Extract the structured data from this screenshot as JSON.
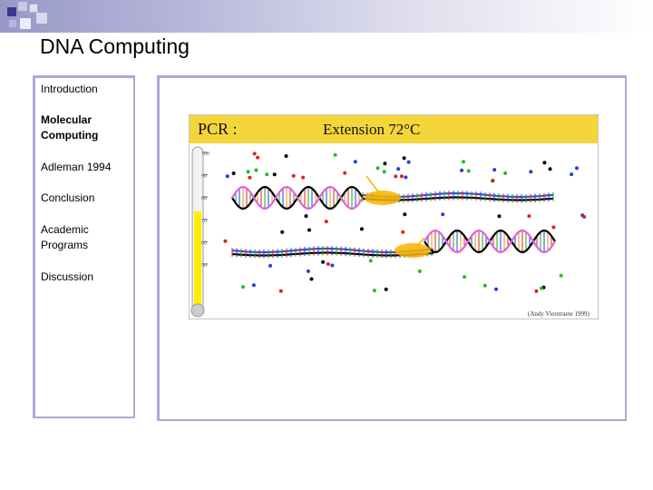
{
  "slide": {
    "title": "DNA Computing"
  },
  "nav": {
    "items": [
      {
        "label": "Introduction",
        "active": false
      },
      {
        "label": "Molecular Computing",
        "active": true
      },
      {
        "label": "Adleman 1994",
        "active": false
      },
      {
        "label": "Conclusion",
        "active": false
      },
      {
        "label": "Academic Programs",
        "active": false
      },
      {
        "label": "Discussion",
        "active": false
      }
    ]
  },
  "figure": {
    "header_left": "PCR :",
    "header_right": "Extension 72°C",
    "thermometer_ticks": [
      "100",
      "90",
      "80",
      "70",
      "60",
      "50"
    ],
    "thermometer_level": 0.62,
    "credit": "(Andy Vierstraete 1999)",
    "colors": {
      "header_bg": "#f5d63a",
      "mercury": "#ffee00",
      "enzyme": "#f7b500",
      "strand_pink": "#e060e0",
      "strand_black": "#000000",
      "strand_blue": "#3f51c9",
      "nucleotide_red": "#e02020",
      "nucleotide_green": "#20c020",
      "nucleotide_blue": "#2040e0"
    }
  }
}
